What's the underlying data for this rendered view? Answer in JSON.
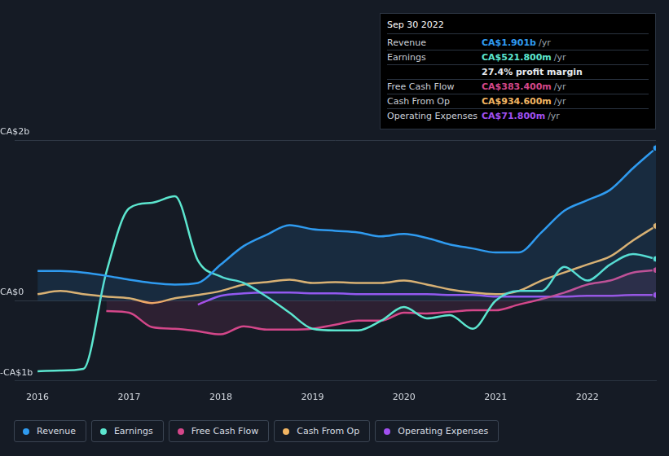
{
  "chart_data": {
    "type": "line",
    "x": [
      2016,
      2016.25,
      2016.5,
      2016.75,
      2017,
      2017.25,
      2017.5,
      2017.75,
      2018,
      2018.25,
      2018.5,
      2018.75,
      2019,
      2019.25,
      2019.5,
      2019.75,
      2020,
      2020.25,
      2020.5,
      2020.75,
      2021,
      2021.25,
      2021.5,
      2021.75,
      2022,
      2022.25,
      2022.5,
      2022.75
    ],
    "series": [
      {
        "name": "Revenue",
        "color": "#2f9bf0",
        "values": [
          0.37,
          0.37,
          0.35,
          0.31,
          0.26,
          0.22,
          0.2,
          0.22,
          0.45,
          0.68,
          0.82,
          0.94,
          0.89,
          0.87,
          0.85,
          0.8,
          0.83,
          0.78,
          0.7,
          0.65,
          0.6,
          0.6,
          0.85,
          1.12,
          1.25,
          1.38,
          1.65,
          1.9
        ]
      },
      {
        "name": "Earnings",
        "color": "#5ce6cf",
        "values": [
          -0.88,
          -0.87,
          -0.85,
          0.35,
          1.15,
          1.22,
          1.3,
          0.5,
          0.3,
          0.22,
          0.05,
          -0.15,
          -0.35,
          -0.37,
          -0.37,
          -0.25,
          -0.08,
          -0.22,
          -0.18,
          -0.35,
          0.0,
          0.12,
          0.12,
          0.42,
          0.25,
          0.45,
          0.58,
          0.52
        ]
      },
      {
        "name": "Free Cash Flow",
        "color": "#d4478a",
        "values": [
          null,
          null,
          null,
          -0.13,
          -0.15,
          -0.33,
          -0.35,
          -0.38,
          -0.42,
          -0.32,
          -0.36,
          -0.36,
          -0.35,
          -0.3,
          -0.25,
          -0.25,
          -0.15,
          -0.16,
          -0.14,
          -0.12,
          -0.12,
          -0.05,
          0.02,
          0.1,
          0.2,
          0.25,
          0.35,
          0.38
        ]
      },
      {
        "name": "Cash From Op",
        "color": "#f2b562",
        "values": [
          0.08,
          0.12,
          0.08,
          0.05,
          0.03,
          -0.03,
          0.03,
          0.07,
          0.12,
          0.2,
          0.23,
          0.26,
          0.22,
          0.23,
          0.22,
          0.22,
          0.25,
          0.2,
          0.14,
          0.1,
          0.08,
          0.12,
          0.25,
          0.35,
          0.45,
          0.55,
          0.75,
          0.93
        ]
      },
      {
        "name": "Operating Expenses",
        "color": "#a150f0",
        "values": [
          null,
          null,
          null,
          null,
          null,
          null,
          null,
          -0.05,
          0.06,
          0.09,
          0.1,
          0.1,
          0.09,
          0.09,
          0.08,
          0.08,
          0.08,
          0.08,
          0.07,
          0.07,
          0.05,
          0.05,
          0.05,
          0.05,
          0.06,
          0.06,
          0.07,
          0.07
        ]
      }
    ],
    "xlim": [
      2015.75,
      2022.75
    ],
    "xticks": [
      2016,
      2017,
      2018,
      2019,
      2020,
      2021,
      2022
    ],
    "ylim": [
      -1,
      2
    ],
    "yticks": [
      {
        "value": 2,
        "label": "CA$2b"
      },
      {
        "value": 0,
        "label": "CA$0"
      },
      {
        "value": -1,
        "label": "-CA$1b"
      }
    ],
    "grid": true,
    "legend": "bottom-left",
    "info_box": {
      "title": "Sep 30 2022",
      "rows": [
        {
          "label": "Revenue",
          "value": "CA$1.901b",
          "unit": "/yr"
        },
        {
          "label": "Earnings",
          "value": "CA$521.800m",
          "unit": "/yr"
        },
        {
          "margin": "27.4% profit margin"
        },
        {
          "label": "Free Cash Flow",
          "value": "CA$383.400m",
          "unit": "/yr"
        },
        {
          "label": "Cash From Op",
          "value": "CA$934.600m",
          "unit": "/yr"
        },
        {
          "label": "Operating Expenses",
          "value": "CA$71.800m",
          "unit": "/yr"
        }
      ]
    }
  }
}
